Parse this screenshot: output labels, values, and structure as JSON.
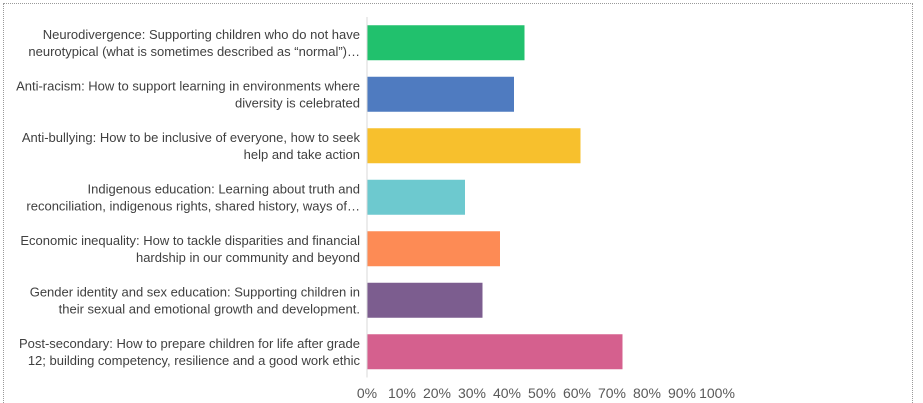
{
  "chart_data": {
    "type": "bar",
    "orientation": "horizontal",
    "title": "",
    "xlabel": "",
    "ylabel": "",
    "xlim": [
      0,
      100
    ],
    "grid": false,
    "legend": "none",
    "categories": [
      [
        "Neurodivergence: Supporting children who do not have",
        "neurotypical (what is sometimes described as “normal”)…"
      ],
      [
        "Anti-racism: How to support learning in environments where",
        "diversity is celebrated"
      ],
      [
        "Anti-bullying: How to be inclusive of everyone, how to seek",
        "help and take action"
      ],
      [
        "Indigenous education: Learning about truth and",
        "reconciliation, indigenous rights, shared history, ways of…"
      ],
      [
        "Economic inequality: How to tackle disparities and financial",
        "hardship in our community and beyond"
      ],
      [
        "Gender identity and sex education: Supporting children in",
        "their sexual and emotional growth and development."
      ],
      [
        "Post-secondary: How to prepare children for life after grade",
        "12; building competency, resilience and a good work ethic"
      ]
    ],
    "values": [
      45,
      42,
      61,
      28,
      38,
      33,
      73
    ],
    "colors": [
      "#21c16d",
      "#4f7bc0",
      "#f7c02d",
      "#6dc9cf",
      "#fd8b55",
      "#7c5d8f",
      "#d5608e"
    ],
    "tick_labels": [
      "0%",
      "10%",
      "20%",
      "30%",
      "40%",
      "50%",
      "60%",
      "70%",
      "80%",
      "90%",
      "100%"
    ],
    "tick_values": [
      0,
      10,
      20,
      30,
      40,
      50,
      60,
      70,
      80,
      90,
      100
    ]
  }
}
